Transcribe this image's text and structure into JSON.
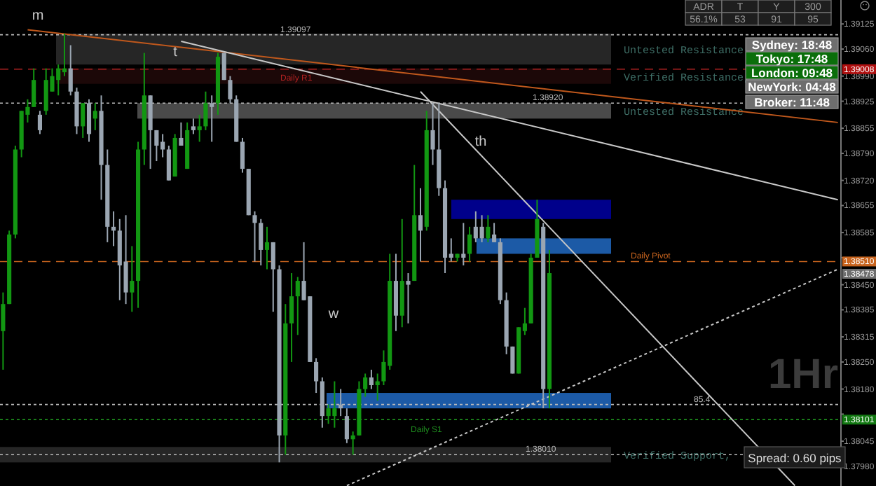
{
  "chart_data": {
    "type": "candlestick",
    "categories": [
      null,
      null,
      null,
      null,
      null,
      null,
      null,
      null,
      null,
      null,
      null,
      null,
      null,
      null,
      null,
      null,
      null,
      null,
      null,
      null,
      null,
      null,
      null,
      null,
      null,
      null,
      null,
      null,
      null,
      null,
      null,
      null,
      null,
      null,
      null,
      null,
      null,
      null,
      null,
      null,
      null,
      null,
      null,
      null,
      null,
      null,
      null,
      null,
      null,
      null,
      null,
      null,
      null,
      null,
      null,
      null,
      null,
      null,
      null,
      null,
      null,
      null,
      null,
      null,
      null,
      null,
      null,
      null,
      null,
      null,
      null,
      null,
      null,
      null,
      null,
      null,
      null,
      null,
      null,
      null,
      null,
      null,
      null,
      null,
      null,
      null,
      null,
      null,
      null,
      null,
      null,
      null,
      null,
      null,
      null,
      null,
      null,
      null,
      null,
      null,
      null,
      null,
      null,
      null,
      null,
      null,
      null,
      null,
      null,
      null,
      null,
      null,
      null,
      null,
      null,
      null,
      null,
      null,
      null,
      null,
      null,
      null,
      null,
      null,
      null,
      null,
      null,
      null,
      null,
      null,
      null,
      null,
      null,
      null,
      null,
      null,
      null
    ],
    "ohlc": [
      [
        1.3833,
        1.3843,
        1.3823,
        1.384
      ],
      [
        1.384,
        1.3859,
        1.384,
        1.3858
      ],
      [
        1.3858,
        1.3881,
        1.3857,
        1.388
      ],
      [
        1.388,
        1.389,
        1.3878,
        1.389
      ],
      [
        1.3889,
        1.3893,
        1.3887,
        1.3891
      ],
      [
        1.3891,
        1.3901,
        1.3891,
        1.3898
      ],
      [
        1.3889,
        1.389,
        1.3884,
        1.3885
      ],
      [
        1.389,
        1.3901,
        1.3889,
        1.3898
      ],
      [
        1.3895,
        1.3901,
        1.3895,
        1.3899
      ],
      [
        1.3898,
        1.3902,
        1.3894,
        1.3901
      ],
      [
        1.39,
        1.391,
        1.3899,
        1.3901
      ],
      [
        1.3901,
        1.3907,
        1.3894,
        1.3895
      ],
      [
        1.3895,
        1.3896,
        1.3884,
        1.3886
      ],
      [
        1.3886,
        1.3892,
        1.3883,
        1.3892
      ],
      [
        1.3892,
        1.3893,
        1.3882,
        1.3884
      ],
      [
        1.3888,
        1.3892,
        1.3885,
        1.389
      ],
      [
        1.389,
        1.3894,
        1.3867,
        1.3876
      ],
      [
        1.3876,
        1.388,
        1.3856,
        1.386
      ],
      [
        1.386,
        1.3864,
        1.3855,
        1.3859
      ],
      [
        1.3859,
        1.3862,
        1.3841,
        1.385
      ],
      [
        1.3851,
        1.3863,
        1.384,
        1.3843
      ],
      [
        1.3843,
        1.3855,
        1.3838,
        1.3846
      ],
      [
        1.3846,
        1.3882,
        1.3839,
        1.388
      ],
      [
        1.388,
        1.3905,
        1.3876,
        1.3894
      ],
      [
        1.3894,
        1.3894,
        1.3875,
        1.3885
      ],
      [
        1.3885,
        1.3885,
        1.3877,
        1.3881
      ],
      [
        1.3882,
        1.3884,
        1.3878,
        1.388
      ],
      [
        1.388,
        1.3881,
        1.3872,
        1.3872
      ],
      [
        1.3873,
        1.3884,
        1.3873,
        1.3883
      ],
      [
        1.3883,
        1.3887,
        1.3881,
        1.3881
      ],
      [
        1.3875,
        1.3887,
        1.3875,
        1.3885
      ],
      [
        1.3886,
        1.3888,
        1.3884,
        1.3885
      ],
      [
        1.3885,
        1.3889,
        1.3882,
        1.3886
      ],
      [
        1.3886,
        1.3895,
        1.3885,
        1.3892
      ],
      [
        1.3892,
        1.3894,
        1.3882,
        1.3891
      ],
      [
        1.3892,
        1.3905,
        1.3889,
        1.3904
      ],
      [
        1.3905,
        1.3905,
        1.3898,
        1.3898
      ],
      [
        1.3898,
        1.3899,
        1.3892,
        1.3893
      ],
      [
        1.3893,
        1.3894,
        1.3882,
        1.3882
      ],
      [
        1.3882,
        1.3883,
        1.3874,
        1.3875
      ],
      [
        1.3875,
        1.3875,
        1.3863,
        1.3863
      ],
      [
        1.3863,
        1.3864,
        1.3851,
        1.3861
      ],
      [
        1.3861,
        1.3862,
        1.385,
        1.3854
      ],
      [
        1.3854,
        1.386,
        1.3849,
        1.3856
      ],
      [
        1.3856,
        1.3856,
        1.3838,
        1.3849
      ],
      [
        1.3849,
        1.385,
        1.3799,
        1.3806
      ],
      [
        1.3806,
        1.384,
        1.3801,
        1.3835
      ],
      [
        1.3835,
        1.3848,
        1.3825,
        1.3842
      ],
      [
        1.3842,
        1.3847,
        1.3832,
        1.3846
      ],
      [
        1.3846,
        1.3856,
        1.3841,
        1.3841
      ],
      [
        1.3842,
        1.3842,
        1.3825,
        1.3825
      ],
      [
        1.3825,
        1.3826,
        1.3817,
        1.382
      ],
      [
        1.382,
        1.3821,
        1.3808,
        1.3811
      ],
      [
        1.3811,
        1.3814,
        1.3809,
        1.3813
      ],
      [
        1.3811,
        1.382,
        1.3808,
        1.3813
      ],
      [
        1.3814,
        1.3818,
        1.3811,
        1.3813
      ],
      [
        1.3811,
        1.3813,
        1.3804,
        1.3805
      ],
      [
        1.3805,
        1.3807,
        1.3801,
        1.3806
      ],
      [
        1.3806,
        1.382,
        1.3806,
        1.3818
      ],
      [
        1.3818,
        1.3822,
        1.3816,
        1.3821
      ],
      [
        1.3821,
        1.3823,
        1.3818,
        1.3819
      ],
      [
        1.3819,
        1.3822,
        1.3815,
        1.382
      ],
      [
        1.382,
        1.3828,
        1.3819,
        1.3825
      ],
      [
        1.3824,
        1.3853,
        1.3823,
        1.3846
      ],
      [
        1.3846,
        1.3853,
        1.3833,
        1.3837
      ],
      [
        1.3837,
        1.3862,
        1.3834,
        1.3846
      ],
      [
        1.3846,
        1.3848,
        1.3835,
        1.3845
      ],
      [
        1.3846,
        1.3876,
        1.3846,
        1.3863
      ],
      [
        1.3863,
        1.387,
        1.3851,
        1.3859
      ],
      [
        1.386,
        1.389,
        1.3859,
        1.3885
      ],
      [
        1.3885,
        1.3892,
        1.3876,
        1.388
      ],
      [
        1.388,
        1.3892,
        1.3868,
        1.387
      ],
      [
        1.387,
        1.3872,
        1.3848,
        1.3852
      ],
      [
        1.3853,
        1.3857,
        1.3851,
        1.3852
      ],
      [
        1.3852,
        1.3853,
        1.3851,
        1.3853
      ],
      [
        1.3853,
        1.3861,
        1.385,
        1.3852
      ],
      [
        1.3853,
        1.386,
        1.3851,
        1.3858
      ],
      [
        1.386,
        1.3864,
        1.3856,
        1.3857
      ],
      [
        1.386,
        1.3863,
        1.3856,
        1.3857
      ],
      [
        1.3857,
        1.3863,
        1.3856,
        1.386
      ],
      [
        1.3858,
        1.3861,
        1.3856,
        1.3856
      ],
      [
        1.3856,
        1.3857,
        1.384,
        1.3841
      ],
      [
        1.3841,
        1.3843,
        1.3827,
        1.3829
      ],
      [
        1.3829,
        1.3829,
        1.3822,
        1.3822
      ],
      [
        1.3822,
        1.3834,
        1.3822,
        1.3834
      ],
      [
        1.3833,
        1.3839,
        1.3832,
        1.3835
      ],
      [
        1.3835,
        1.3853,
        1.3835,
        1.3852
      ],
      [
        1.3852,
        1.3867,
        1.3852,
        1.3862
      ],
      [
        1.386,
        1.3861,
        1.3813,
        1.3818
      ],
      [
        1.3818,
        1.3854,
        1.3813,
        1.3848
      ],
      null,
      null,
      null,
      null,
      null,
      null,
      null,
      null,
      null,
      null,
      null,
      null,
      null,
      null,
      null,
      null,
      null,
      null,
      null,
      null,
      null,
      null,
      null,
      null,
      null,
      null,
      null,
      null,
      null,
      null,
      null,
      null,
      null,
      null,
      null,
      null,
      null,
      null,
      null,
      null,
      null,
      null,
      null,
      null,
      null,
      null,
      null
    ],
    "colors": [
      "#129712",
      "#129712",
      "#129712",
      "#129712",
      "#129712",
      "#129712",
      "#9ba6b2",
      "#129712",
      "#129712",
      "#129712",
      "#129712",
      "#9ba6b2",
      "#9ba6b2",
      "#129712",
      "#9ba6b2",
      "#129712",
      "#9ba6b2",
      "#9ba6b2",
      "#9ba6b2",
      "#9ba6b2",
      "#9ba6b2",
      "#129712",
      "#129712",
      "#129712",
      "#9ba6b2",
      "#9ba6b2",
      "#9ba6b2",
      "#9ba6b2",
      "#129712",
      "#9ba6b2",
      "#129712",
      "#9ba6b2",
      "#129712",
      "#129712",
      "#9ba6b2",
      "#129712",
      "#9ba6b2",
      "#9ba6b2",
      "#9ba6b2",
      "#9ba6b2",
      "#9ba6b2",
      "#9ba6b2",
      "#9ba6b2",
      "#129712",
      "#9ba6b2",
      "#9ba6b2",
      "#129712",
      "#129712",
      "#129712",
      "#9ba6b2",
      "#9ba6b2",
      "#9ba6b2",
      "#9ba6b2",
      "#129712",
      "#129712",
      "#9ba6b2",
      "#9ba6b2",
      "#129712",
      "#129712",
      "#129712",
      "#9ba6b2",
      "#129712",
      "#129712",
      "#129712",
      "#9ba6b2",
      "#129712",
      "#9ba6b2",
      "#129712",
      "#9ba6b2",
      "#129712",
      "#9ba6b2",
      "#9ba6b2",
      "#9ba6b2",
      "#9ba6b2",
      "#129712",
      "#9ba6b2",
      "#129712",
      "#9ba6b2",
      "#9ba6b2",
      "#129712",
      "#9ba6b2",
      "#9ba6b2",
      "#9ba6b2",
      "#9ba6b2",
      "#129712",
      "#129712",
      "#129712",
      "#129712",
      "#9ba6b2",
      "#129712",
      null,
      null,
      null,
      null,
      null,
      null,
      null,
      null,
      null,
      null,
      null,
      null,
      null,
      null,
      null,
      null,
      null,
      null,
      null,
      null,
      null,
      null,
      null,
      null,
      null,
      null,
      null,
      null,
      null,
      null,
      null,
      null,
      null,
      null,
      null,
      null,
      null,
      null,
      null,
      null,
      null,
      null,
      null,
      null,
      null,
      null,
      null
    ],
    "series": [
      {
        "type": "line",
        "color": "#c0581c",
        "values": [
          null,
          null,
          null,
          null,
          1.3911,
          null,
          null,
          null,
          null,
          null,
          null,
          null,
          null,
          null,
          null,
          null,
          null,
          null,
          null,
          null,
          null,
          null,
          null,
          null,
          null,
          null,
          null,
          null,
          null,
          null,
          null,
          null,
          null,
          null,
          null,
          null,
          null,
          null,
          null,
          null,
          null,
          null,
          null,
          null,
          null,
          null,
          null,
          null,
          null,
          null,
          null,
          null,
          null,
          null,
          null,
          null,
          null,
          null,
          null,
          null,
          null,
          null,
          null,
          null,
          null,
          null,
          null,
          null,
          null,
          null,
          null,
          null,
          null,
          null,
          null,
          null,
          null,
          null,
          null,
          null,
          null,
          null,
          null,
          null,
          null,
          null,
          null,
          null,
          null,
          null,
          null,
          null,
          null,
          null,
          null,
          null,
          null,
          null,
          null,
          null,
          null,
          null,
          null,
          null,
          null,
          null,
          null,
          null,
          null,
          null,
          null,
          null,
          null,
          null,
          null,
          null,
          null,
          null,
          null,
          null,
          null,
          null,
          null,
          null,
          null,
          null,
          null,
          null,
          null,
          null,
          null,
          null,
          null,
          null,
          null,
          null,
          1.3887
        ]
      },
      {
        "type": "line",
        "color": "#c8c8c8",
        "values": [
          null,
          null,
          null,
          null,
          null,
          null,
          null,
          null,
          null,
          null,
          null,
          null,
          null,
          null,
          null,
          null,
          null,
          null,
          null,
          null,
          null,
          null,
          null,
          null,
          null,
          null,
          null,
          null,
          null,
          1.3908,
          null,
          null,
          null,
          null,
          null,
          null,
          null,
          null,
          null,
          null,
          null,
          null,
          null,
          null,
          null,
          null,
          null,
          null,
          null,
          null,
          null,
          null,
          null,
          null,
          null,
          null,
          null,
          null,
          null,
          null,
          null,
          null,
          null,
          null,
          null,
          null,
          null,
          null,
          null,
          null,
          null,
          null,
          null,
          null,
          null,
          null,
          null,
          null,
          null,
          null,
          null,
          null,
          null,
          null,
          null,
          null,
          null,
          null,
          null,
          null,
          null,
          null,
          null,
          null,
          null,
          null,
          null,
          null,
          null,
          null,
          null,
          null,
          null,
          null,
          null,
          null,
          null,
          null,
          null,
          null,
          null,
          null,
          null,
          null,
          null,
          null,
          null,
          null,
          null,
          null,
          null,
          null,
          null,
          null,
          null,
          null,
          null,
          null,
          null,
          null,
          null,
          null,
          null,
          null,
          null,
          null,
          1.3867
        ]
      },
      {
        "type": "line",
        "color": "#c8c8c8",
        "values": [
          null,
          null,
          null,
          null,
          null,
          null,
          null,
          null,
          null,
          null,
          null,
          null,
          null,
          null,
          null,
          null,
          null,
          null,
          null,
          null,
          null,
          null,
          null,
          null,
          null,
          null,
          null,
          null,
          null,
          null,
          null,
          null,
          null,
          null,
          null,
          null,
          null,
          null,
          null,
          null,
          null,
          null,
          null,
          null,
          null,
          null,
          null,
          null,
          null,
          null,
          null,
          null,
          null,
          null,
          null,
          null,
          null,
          null,
          null,
          null,
          null,
          null,
          null,
          null,
          null,
          null,
          null,
          null,
          1.3895,
          null,
          null,
          null,
          null,
          null,
          null,
          null,
          null,
          null,
          null,
          null,
          null,
          null,
          null,
          null,
          null,
          null,
          null,
          null,
          null,
          null,
          null,
          null,
          null,
          null,
          null,
          null,
          null,
          null,
          null,
          null,
          null,
          null,
          null,
          null,
          null,
          null,
          null,
          null,
          null,
          null,
          null,
          null,
          null,
          null,
          null,
          null,
          null,
          null,
          null,
          null,
          null,
          null,
          null,
          null,
          null,
          null,
          null,
          null,
          null,
          1.3793,
          null,
          null,
          null,
          null,
          null,
          null,
          null
        ]
      },
      {
        "type": "line",
        "color": "#c8c8c8",
        "line_style": "dotted",
        "values": [
          null,
          null,
          null,
          null,
          null,
          null,
          null,
          null,
          null,
          null,
          null,
          null,
          null,
          null,
          null,
          null,
          null,
          null,
          null,
          null,
          null,
          null,
          null,
          null,
          null,
          null,
          null,
          null,
          null,
          null,
          null,
          null,
          null,
          null,
          null,
          null,
          null,
          null,
          null,
          null,
          null,
          null,
          null,
          null,
          null,
          null,
          null,
          null,
          null,
          null,
          null,
          null,
          null,
          null,
          null,
          null,
          1.3793,
          null,
          null,
          null,
          null,
          null,
          null,
          null,
          null,
          null,
          null,
          null,
          null,
          null,
          null,
          null,
          null,
          null,
          null,
          null,
          null,
          null,
          null,
          null,
          null,
          null,
          null,
          null,
          null,
          null,
          null,
          null,
          null,
          null,
          null,
          null,
          null,
          null,
          null,
          null,
          null,
          null,
          null,
          null,
          null,
          null,
          null,
          null,
          null,
          null,
          null,
          null,
          null,
          null,
          null,
          null,
          null,
          null,
          null,
          null,
          null,
          null,
          null,
          null,
          null,
          null,
          null,
          null,
          null,
          null,
          null,
          null,
          null,
          null,
          null,
          null,
          null,
          null,
          null,
          null,
          1.3849
        ]
      }
    ],
    "ylim": [
      1.37929,
      1.39187
    ],
    "yticks": [
      {
        "value": 1.39125,
        "label": "1.39125"
      },
      {
        "value": 1.3906,
        "label": "1.39060"
      },
      {
        "value": 1.3899,
        "label": "1.38990"
      },
      {
        "value": 1.38925,
        "label": "1.38925"
      },
      {
        "value": 1.38855,
        "label": "1.38855"
      },
      {
        "value": 1.3879,
        "label": "1.38790"
      },
      {
        "value": 1.3872,
        "label": "1.38720"
      },
      {
        "value": 1.38655,
        "label": "1.38655"
      },
      {
        "value": 1.38585,
        "label": "1.38585"
      },
      {
        "value": 1.3852,
        "label": null
      },
      {
        "value": 1.3845,
        "label": "1.38450"
      },
      {
        "value": 1.38385,
        "label": "1.38385"
      },
      {
        "value": 1.38315,
        "label": "1.38315"
      },
      {
        "value": 1.3825,
        "label": "1.38250"
      },
      {
        "value": 1.3818,
        "label": "1.38180"
      },
      {
        "value": 1.38115,
        "label": null
      },
      {
        "value": 1.38045,
        "label": "1.38045"
      },
      {
        "value": 1.3798,
        "label": "1.37980"
      }
    ],
    "tick_labels": "y",
    "grid": false,
    "ref_lines": [
      {
        "axis": "y",
        "value": 1.39008,
        "label": "Daily R1",
        "color": "#b22222",
        "line_style": "dashed"
      },
      {
        "axis": "y",
        "value": 1.3851,
        "label": "Daily Pivot",
        "color": "#c8641e",
        "line_style": "dashed"
      },
      {
        "axis": "y",
        "value": 1.38101,
        "label": "Daily S1",
        "color": "#1e8c1e",
        "line_style": "dotted"
      },
      {
        "axis": "y",
        "value": 1.39097,
        "label": "1.39097",
        "color": "#bbbbbb",
        "line_style": "dotted"
      },
      {
        "axis": "y",
        "value": 1.3892,
        "label": "1.38920",
        "color": "#bbbbbb",
        "line_style": "dotted"
      },
      {
        "axis": "y",
        "value": 1.3814,
        "label": null,
        "color": "#bbbbbb",
        "line_style": "dotted"
      },
      {
        "axis": "y",
        "value": 1.3801,
        "label": "1.38010",
        "color": "#bbbbbb",
        "line_style": "dotted"
      }
    ],
    "bands": [
      {
        "axis": "y",
        "from": 1.3902,
        "to": 1.391,
        "label": "Untested Resistance",
        "color": "#262626"
      },
      {
        "axis": "y",
        "from": 1.3897,
        "to": 1.3901,
        "label": "Verified Resistance,",
        "color": "#1c0808"
      },
      {
        "axis": "y",
        "from": 1.3888,
        "to": 1.3892,
        "label": "Untested Resistance",
        "color": "#4a4a4a"
      },
      {
        "axis": "y",
        "from": 1.3862,
        "to": 1.3867,
        "label": null,
        "color": "#00008b"
      },
      {
        "axis": "y",
        "from": 1.3853,
        "to": 1.3857,
        "label": null,
        "color": "#1c5aa6"
      },
      {
        "axis": "y",
        "from": 1.3813,
        "to": 1.3817,
        "label": null,
        "color": "#1c5aa6"
      },
      {
        "axis": "y",
        "from": 1.3799,
        "to": 1.3803,
        "label": "Verified Support,",
        "color": "#262626"
      }
    ],
    "annotations": [
      "m",
      "t",
      "th",
      "w",
      "1Hr",
      "ADR",
      "T",
      "Y",
      "300",
      "56.1%",
      "53",
      "91",
      "95",
      "Sydney: 18:48",
      "Tokyo: 17:48",
      "London: 09:48",
      "NewYork: 04:48",
      "Broker: 11:48",
      "Spread: 0.60 pips",
      "1.39008",
      "1.38510",
      "1.38478",
      "1.38101",
      {
        "text": "85.4",
        "y": 1.3814
      }
    ]
  }
}
